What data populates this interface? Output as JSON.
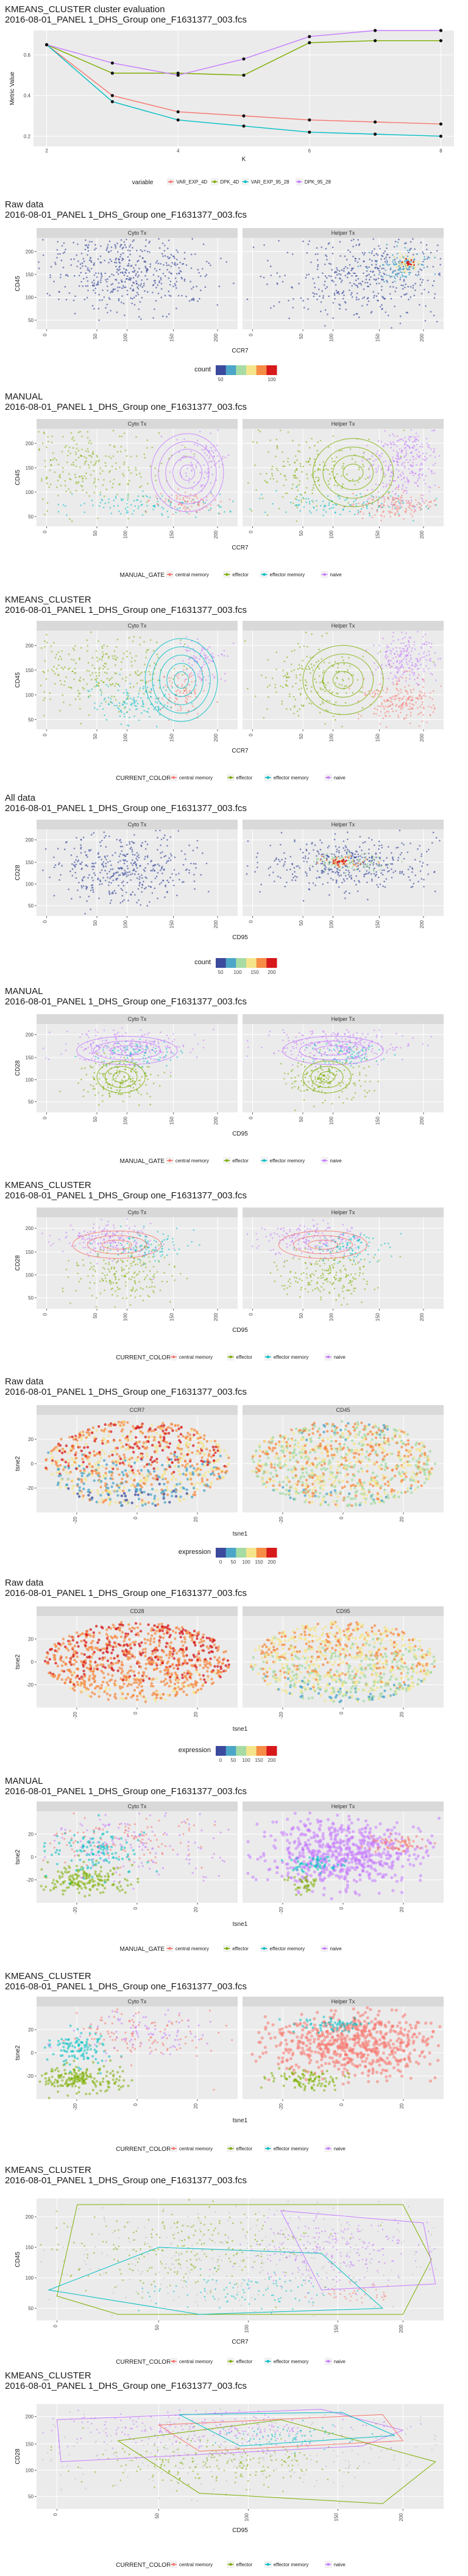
{
  "plots": [
    {
      "id": "eval",
      "title": "KMEANS_CLUSTER cluster evaluation",
      "subtitle": "2016-08-01_PANEL 1_DHS_Group one_F1631377_003.fcs",
      "xlabel": "K",
      "ylabel": "Metric Value",
      "legend_title": "variable",
      "legend_items": [
        "VAR_EXP_4D",
        "DPK_4D",
        "VAR_EXP_95_28",
        "DPK_95_28"
      ],
      "x_ticks": [
        "2",
        "4",
        "6",
        "8"
      ],
      "y_ticks": [
        "0.2",
        "0.4",
        "0.6"
      ]
    },
    {
      "id": "p1",
      "title": "Raw data",
      "subtitle": "2016-08-01_PANEL 1_DHS_Group one_F1631377_003.fcs",
      "facets": [
        "Cyto Tx",
        "Helper Tx"
      ],
      "xlabel": "CCR7",
      "ylabel": "CD45",
      "legend_title": "count",
      "legend_ticks": [
        "50",
        "100"
      ]
    },
    {
      "id": "p2",
      "title": "MANUAL",
      "subtitle": "2016-08-01_PANEL 1_DHS_Group one_F1631377_003.fcs",
      "facets": [
        "Cyto Tx",
        "Helper Tx"
      ],
      "xlabel": "CCR7",
      "ylabel": "CD45",
      "legend_title": "MANUAL_GATE",
      "legend_items": [
        "central memory",
        "effector",
        "effector memory",
        "naive"
      ]
    },
    {
      "id": "p3",
      "title": "KMEANS_CLUSTER",
      "subtitle": "2016-08-01_PANEL 1_DHS_Group one_F1631377_003.fcs",
      "facets": [
        "Cyto Tx",
        "Helper Tx"
      ],
      "xlabel": "CCR7",
      "ylabel": "CD45",
      "legend_title": "CURRENT_COLOR",
      "legend_items": [
        "central memory",
        "effector",
        "effector memory",
        "naive"
      ]
    },
    {
      "id": "p4",
      "title": "All data",
      "subtitle": "2016-08-01_PANEL 1_DHS_Group one_F1631377_003.fcs",
      "facets": [
        "Cyto Tx",
        "Helper Tx"
      ],
      "xlabel": "CD95",
      "ylabel": "CD28",
      "legend_title": "count",
      "legend_ticks": [
        "50",
        "100",
        "150",
        "200"
      ]
    },
    {
      "id": "p5",
      "title": "MANUAL",
      "subtitle": "2016-08-01_PANEL 1_DHS_Group one_F1631377_003.fcs",
      "facets": [
        "Cyto Tx",
        "Helper Tx"
      ],
      "xlabel": "CD95",
      "ylabel": "CD28",
      "legend_title": "MANUAL_GATE",
      "legend_items": [
        "central memory",
        "effector",
        "effector memory",
        "naive"
      ]
    },
    {
      "id": "p6",
      "title": "KMEANS_CLUSTER",
      "subtitle": "2016-08-01_PANEL 1_DHS_Group one_F1631377_003.fcs",
      "facets": [
        "Cyto Tx",
        "Helper Tx"
      ],
      "xlabel": "CD95",
      "ylabel": "CD28",
      "legend_title": "CURRENT_COLOR",
      "legend_items": [
        "central memory",
        "effector",
        "effector memory",
        "naive"
      ]
    },
    {
      "id": "p7",
      "title": "Raw data",
      "subtitle": "2016-08-01_PANEL 1_DHS_Group one_F1631377_003.fcs",
      "facets": [
        "CCR7",
        "CD45"
      ],
      "xlabel": "tsne1",
      "ylabel": "tsne2",
      "legend_title": "expression",
      "legend_ticks": [
        "0",
        "50",
        "100",
        "150",
        "200"
      ]
    },
    {
      "id": "p8",
      "title": "Raw data",
      "subtitle": "2016-08-01_PANEL 1_DHS_Group one_F1631377_003.fcs",
      "facets": [
        "CD28",
        "CD95"
      ],
      "xlabel": "tsne1",
      "ylabel": "tsne2",
      "legend_title": "expression",
      "legend_ticks": [
        "0",
        "50",
        "100",
        "150",
        "200"
      ]
    },
    {
      "id": "p9",
      "title": "MANUAL",
      "subtitle": "2016-08-01_PANEL 1_DHS_Group one_F1631377_003.fcs",
      "facets": [
        "Cyto Tx",
        "Helper Tx"
      ],
      "xlabel": "tsne1",
      "ylabel": "tsne2",
      "legend_title": "MANUAL_GATE",
      "legend_items": [
        "central memory",
        "effector",
        "effector memory",
        "naive"
      ]
    },
    {
      "id": "p10",
      "title": "KMEANS_CLUSTER",
      "subtitle": "2016-08-01_PANEL 1_DHS_Group one_F1631377_003.fcs",
      "facets": [
        "Cyto Tx",
        "Helper Tx"
      ],
      "xlabel": "tsne1",
      "ylabel": "tsne2",
      "legend_title": "CURRENT_COLOR",
      "legend_items": [
        "central memory",
        "effector",
        "effector memory",
        "naive"
      ]
    },
    {
      "id": "p11",
      "title": "KMEANS_CLUSTER",
      "subtitle": "2016-08-01_PANEL 1_DHS_Group one_F1631377_003.fcs",
      "xlabel": "CCR7",
      "ylabel": "CD45",
      "legend_title": "CURRENT_COLOR",
      "legend_items": [
        "central memory",
        "effector",
        "effector memory",
        "naive"
      ]
    },
    {
      "id": "p12",
      "title": "KMEANS_CLUSTER",
      "subtitle": "2016-08-01_PANEL 1_DHS_Group one_F1631377_003.fcs",
      "xlabel": "CD95",
      "ylabel": "CD28",
      "legend_title": "CURRENT_COLOR",
      "legend_items": [
        "central memory",
        "effector",
        "effector memory",
        "naive"
      ]
    }
  ],
  "colors": {
    "central_memory": "#F8766D",
    "effector": "#7CAE00",
    "effector_memory": "#00BFC4",
    "naive": "#C77CFF",
    "panel_bg": "#EBEBEB",
    "strip_bg": "#D9D9D9",
    "grid": "#FFFFFF",
    "density_low": "#3B4A9C",
    "density_high": "#E8231F"
  },
  "chart_data": [
    {
      "type": "line",
      "title": "KMEANS_CLUSTER cluster evaluation",
      "xlabel": "K",
      "ylabel": "Metric Value",
      "x": [
        2,
        3,
        4,
        5,
        6,
        7,
        8
      ],
      "xlim": [
        1.8,
        8.2
      ],
      "ylim": [
        0.15,
        0.72
      ],
      "series": [
        {
          "name": "VAR_EXP_4D",
          "values": [
            0.65,
            0.4,
            0.32,
            0.3,
            0.28,
            0.27,
            0.26
          ]
        },
        {
          "name": "DPK_4D",
          "values": [
            0.65,
            0.51,
            0.51,
            0.5,
            0.66,
            0.67,
            0.67
          ]
        },
        {
          "name": "VAR_EXP_95_28",
          "values": [
            0.65,
            0.37,
            0.28,
            0.25,
            0.22,
            0.21,
            0.2
          ]
        },
        {
          "name": "DPK_95_28",
          "values": [
            0.65,
            0.56,
            0.5,
            0.58,
            0.69,
            0.72,
            0.72
          ]
        }
      ]
    },
    {
      "type": "scatter",
      "facets": [
        "Cyto Tx",
        "Helper Tx"
      ],
      "xlabel": "CCR7",
      "ylabel": "CD45",
      "legend": "count",
      "xlim": [
        0,
        200
      ],
      "ylim": [
        40,
        220
      ]
    },
    {
      "type": "scatter",
      "facets": [
        "Cyto Tx",
        "Helper Tx"
      ],
      "xlabel": "CCR7",
      "ylabel": "CD45",
      "legend": "MANUAL_GATE",
      "xlim": [
        0,
        200
      ],
      "ylim": [
        40,
        220
      ]
    },
    {
      "type": "scatter",
      "facets": [
        "Cyto Tx",
        "Helper Tx"
      ],
      "xlabel": "CCR7",
      "ylabel": "CD45",
      "legend": "CURRENT_COLOR",
      "xlim": [
        0,
        200
      ],
      "ylim": [
        40,
        220
      ]
    },
    {
      "type": "scatter",
      "facets": [
        "Cyto Tx",
        "Helper Tx"
      ],
      "xlabel": "CD95",
      "ylabel": "CD28",
      "legend": "count",
      "xlim": [
        0,
        200
      ],
      "ylim": [
        20,
        220
      ]
    },
    {
      "type": "scatter",
      "facets": [
        "Cyto Tx",
        "Helper Tx"
      ],
      "xlabel": "CD95",
      "ylabel": "CD28",
      "legend": "MANUAL_GATE",
      "xlim": [
        0,
        200
      ],
      "ylim": [
        20,
        220
      ]
    },
    {
      "type": "scatter",
      "facets": [
        "Cyto Tx",
        "Helper Tx"
      ],
      "xlabel": "CD95",
      "ylabel": "CD28",
      "legend": "CURRENT_COLOR",
      "xlim": [
        0,
        200
      ],
      "ylim": [
        20,
        220
      ]
    },
    {
      "type": "scatter",
      "facets": [
        "CCR7",
        "CD45"
      ],
      "xlabel": "tsne1",
      "ylabel": "tsne2",
      "legend": "expression",
      "xlim": [
        -35,
        35
      ],
      "ylim": [
        -35,
        35
      ]
    },
    {
      "type": "scatter",
      "facets": [
        "CD28",
        "CD95"
      ],
      "xlabel": "tsne1",
      "ylabel": "tsne2",
      "legend": "expression",
      "xlim": [
        -35,
        35
      ],
      "ylim": [
        -35,
        35
      ]
    },
    {
      "type": "scatter",
      "facets": [
        "Cyto Tx",
        "Helper Tx"
      ],
      "xlabel": "tsne1",
      "ylabel": "tsne2",
      "legend": "MANUAL_GATE",
      "xlim": [
        -35,
        35
      ],
      "ylim": [
        -35,
        35
      ]
    },
    {
      "type": "scatter",
      "facets": [
        "Cyto Tx",
        "Helper Tx"
      ],
      "xlabel": "tsne1",
      "ylabel": "tsne2",
      "legend": "CURRENT_COLOR",
      "xlim": [
        -35,
        35
      ],
      "ylim": [
        -35,
        35
      ]
    },
    {
      "type": "scatter",
      "xlabel": "CCR7",
      "ylabel": "CD45",
      "legend": "CURRENT_COLOR",
      "xlim": [
        0,
        250
      ],
      "ylim": [
        40,
        230
      ]
    },
    {
      "type": "scatter",
      "xlabel": "CD95",
      "ylabel": "CD28",
      "legend": "CURRENT_COLOR",
      "xlim": [
        0,
        250
      ],
      "ylim": [
        0,
        230
      ]
    }
  ]
}
